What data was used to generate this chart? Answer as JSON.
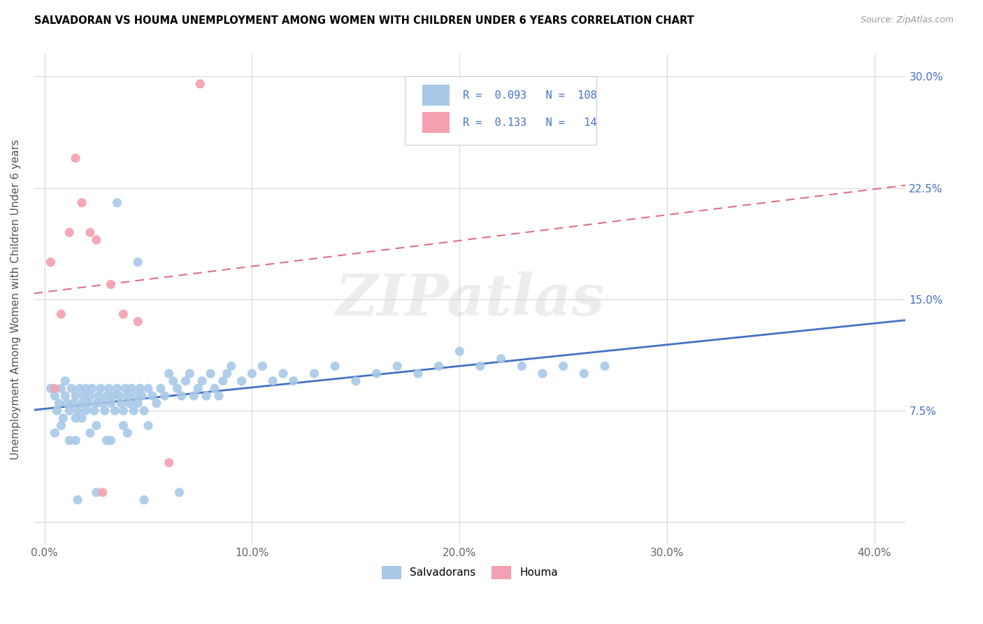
{
  "title": "SALVADORAN VS HOUMA UNEMPLOYMENT AMONG WOMEN WITH CHILDREN UNDER 6 YEARS CORRELATION CHART",
  "source": "Source: ZipAtlas.com",
  "ylabel": "Unemployment Among Women with Children Under 6 years",
  "salvadoran_R": 0.093,
  "salvadoran_N": 108,
  "houma_R": 0.133,
  "houma_N": 14,
  "salvadoran_color": "#a8c8e8",
  "houma_color": "#f4a0b0",
  "trendline_salv_color": "#4472c4",
  "trendline_houma_color": "#e07080",
  "legend_text_color": "#4472c4",
  "watermark": "ZIPatlas",
  "salvadoran_x": [
    0.003,
    0.005,
    0.006,
    0.007,
    0.008,
    0.009,
    0.01,
    0.01,
    0.011,
    0.012,
    0.013,
    0.014,
    0.015,
    0.015,
    0.016,
    0.017,
    0.018,
    0.019,
    0.02,
    0.02,
    0.021,
    0.022,
    0.023,
    0.024,
    0.025,
    0.026,
    0.027,
    0.028,
    0.029,
    0.03,
    0.031,
    0.032,
    0.033,
    0.034,
    0.035,
    0.036,
    0.037,
    0.038,
    0.039,
    0.04,
    0.041,
    0.042,
    0.043,
    0.044,
    0.045,
    0.046,
    0.047,
    0.048,
    0.05,
    0.052,
    0.054,
    0.056,
    0.058,
    0.06,
    0.062,
    0.064,
    0.066,
    0.068,
    0.07,
    0.072,
    0.074,
    0.076,
    0.078,
    0.08,
    0.082,
    0.084,
    0.086,
    0.088,
    0.09,
    0.095,
    0.1,
    0.105,
    0.11,
    0.115,
    0.12,
    0.13,
    0.14,
    0.15,
    0.16,
    0.17,
    0.18,
    0.19,
    0.2,
    0.21,
    0.22,
    0.23,
    0.24,
    0.25,
    0.26,
    0.27,
    0.005,
    0.008,
    0.012,
    0.018,
    0.025,
    0.032,
    0.04,
    0.05,
    0.035,
    0.045,
    0.015,
    0.022,
    0.03,
    0.038,
    0.016,
    0.025,
    0.048,
    0.065
  ],
  "salvadoran_y": [
    0.09,
    0.085,
    0.075,
    0.08,
    0.09,
    0.07,
    0.085,
    0.095,
    0.08,
    0.075,
    0.09,
    0.08,
    0.085,
    0.07,
    0.075,
    0.09,
    0.08,
    0.085,
    0.075,
    0.09,
    0.08,
    0.085,
    0.09,
    0.075,
    0.08,
    0.085,
    0.09,
    0.08,
    0.075,
    0.085,
    0.09,
    0.08,
    0.085,
    0.075,
    0.09,
    0.085,
    0.08,
    0.075,
    0.09,
    0.085,
    0.08,
    0.09,
    0.075,
    0.085,
    0.08,
    0.09,
    0.085,
    0.075,
    0.09,
    0.085,
    0.08,
    0.09,
    0.085,
    0.1,
    0.095,
    0.09,
    0.085,
    0.095,
    0.1,
    0.085,
    0.09,
    0.095,
    0.085,
    0.1,
    0.09,
    0.085,
    0.095,
    0.1,
    0.105,
    0.095,
    0.1,
    0.105,
    0.095,
    0.1,
    0.095,
    0.1,
    0.105,
    0.095,
    0.1,
    0.105,
    0.1,
    0.105,
    0.115,
    0.105,
    0.11,
    0.105,
    0.1,
    0.105,
    0.1,
    0.105,
    0.06,
    0.065,
    0.055,
    0.07,
    0.065,
    0.055,
    0.06,
    0.065,
    0.215,
    0.175,
    0.055,
    0.06,
    0.055,
    0.065,
    0.015,
    0.02,
    0.015,
    0.02
  ],
  "houma_x": [
    0.003,
    0.005,
    0.008,
    0.012,
    0.015,
    0.018,
    0.022,
    0.025,
    0.028,
    0.032,
    0.038,
    0.045,
    0.06,
    0.075
  ],
  "houma_y": [
    0.175,
    0.09,
    0.14,
    0.195,
    0.245,
    0.215,
    0.195,
    0.19,
    0.02,
    0.16,
    0.14,
    0.135,
    0.04,
    0.295
  ],
  "x_tick_vals": [
    0.0,
    0.1,
    0.2,
    0.3,
    0.4
  ],
  "x_tick_labels": [
    "0.0%",
    "10.0%",
    "20.0%",
    "30.0%",
    "40.0%"
  ],
  "y_tick_vals": [
    0.0,
    0.075,
    0.15,
    0.225,
    0.3
  ],
  "y_tick_labels": [
    "",
    "7.5%",
    "15.0%",
    "22.5%",
    "30.0%"
  ],
  "xlim": [
    -0.005,
    0.415
  ],
  "ylim": [
    -0.015,
    0.315
  ]
}
